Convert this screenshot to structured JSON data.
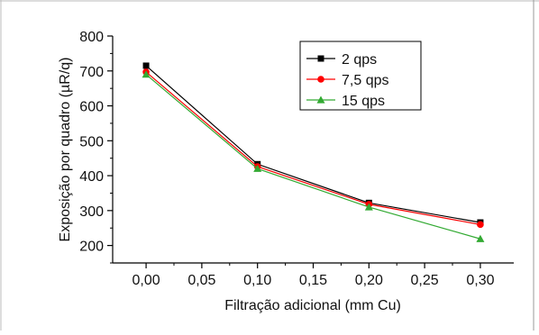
{
  "chart_data": {
    "type": "line",
    "title": "",
    "xlabel": "Filtração adicional (mm Cu)",
    "ylabel": "Exposição por quadro (µR/q)",
    "xlim": [
      -0.03,
      0.33
    ],
    "ylim": [
      150,
      800
    ],
    "x_ticks": [
      0.0,
      0.05,
      0.1,
      0.15,
      0.2,
      0.25,
      0.3
    ],
    "x_tick_labels": [
      "0,00",
      "0,05",
      "0,10",
      "0,15",
      "0,20",
      "0,25",
      "0,30"
    ],
    "y_ticks": [
      200,
      300,
      400,
      500,
      600,
      700,
      800
    ],
    "y_tick_labels": [
      "200",
      "300",
      "400",
      "500",
      "600",
      "700",
      "800"
    ],
    "grid": false,
    "legend_position": "top-right",
    "x": [
      0.0,
      0.1,
      0.2,
      0.3
    ],
    "series": [
      {
        "name": "2 qps",
        "color": "#000000",
        "marker": "square",
        "values": [
          715,
          433,
          322,
          266
        ]
      },
      {
        "name": "7,5 qps",
        "color": "#ff0000",
        "marker": "circle",
        "values": [
          697,
          426,
          318,
          260
        ]
      },
      {
        "name": "15 qps",
        "color": "#33aa33",
        "marker": "triangle",
        "values": [
          690,
          420,
          310,
          219
        ]
      }
    ]
  }
}
